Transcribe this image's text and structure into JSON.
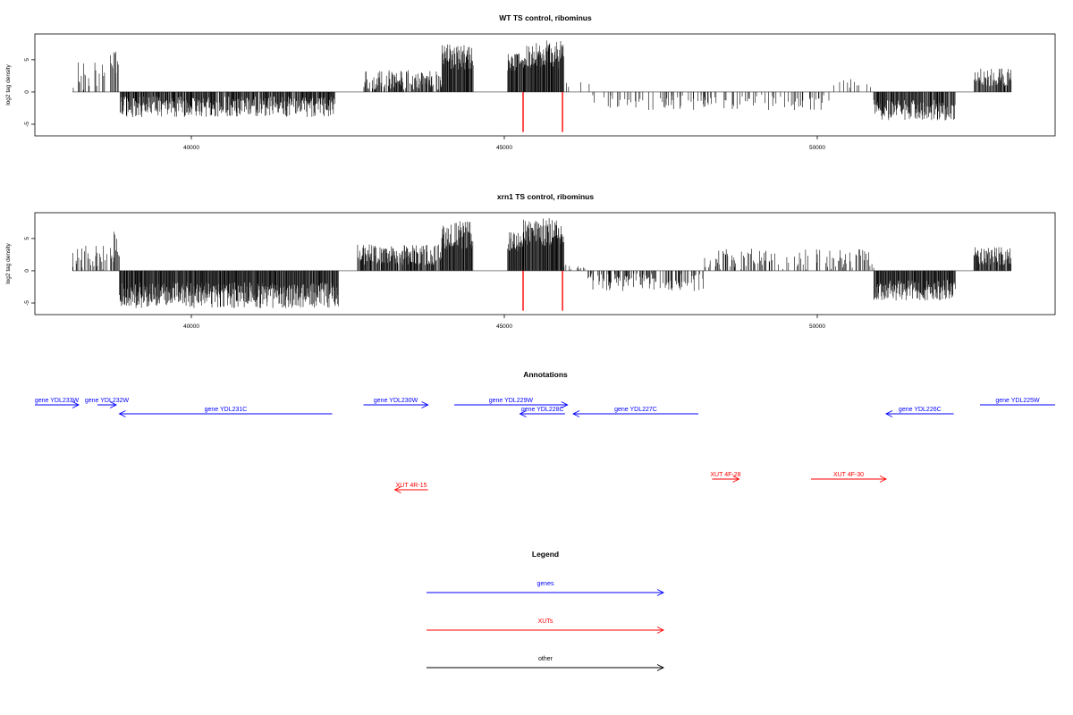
{
  "chart_data": [
    {
      "type": "bar",
      "title": "WT TS control, ribominus",
      "ylabel": "log2 tag density",
      "xlim": [
        37500,
        53800
      ],
      "ylim": [
        -6.8,
        9
      ],
      "x_ticks": [
        40000,
        45000,
        50000
      ],
      "y_ticks": [
        -5,
        0,
        5
      ],
      "y_tick_labels": [
        "-5",
        "0",
        "5"
      ],
      "marker_lines": [
        45300,
        45930
      ],
      "marker_color": "#ff0000",
      "density_color": "#000000",
      "baseline_color": "#808080",
      "segments": [
        {
          "from": 38100,
          "to": 38700,
          "sign": 1,
          "mean": 2.5,
          "var": 2.5
        },
        {
          "from": 38700,
          "to": 38850,
          "sign": 1,
          "mean": 4.5,
          "var": 2.0
        },
        {
          "from": 38850,
          "to": 42300,
          "sign": -1,
          "mean": 2.3,
          "var": 1.6
        },
        {
          "from": 42750,
          "to": 44000,
          "sign": 1,
          "mean": 1.8,
          "var": 1.6
        },
        {
          "from": 44000,
          "to": 44500,
          "sign": 1,
          "mean": 5.5,
          "var": 2.0
        },
        {
          "from": 44500,
          "to": 45050,
          "sign": 0,
          "mean": 0.0,
          "var": 0.0
        },
        {
          "from": 45050,
          "to": 45300,
          "sign": 1,
          "mean": 4.5,
          "var": 1.5
        },
        {
          "from": 45300,
          "to": 45950,
          "sign": 1,
          "mean": 5.8,
          "var": 2.2
        },
        {
          "from": 45950,
          "to": 46400,
          "sign": 1,
          "mean": 0.8,
          "var": 0.8
        },
        {
          "from": 46400,
          "to": 50200,
          "sign": -1,
          "mean": 1.6,
          "var": 1.2
        },
        {
          "from": 50200,
          "to": 50900,
          "sign": 1,
          "mean": 1.0,
          "var": 1.0
        },
        {
          "from": 50900,
          "to": 52200,
          "sign": -1,
          "mean": 2.8,
          "var": 1.6
        },
        {
          "from": 52500,
          "to": 53100,
          "sign": 1,
          "mean": 2.3,
          "var": 1.4
        }
      ],
      "density": {
        "38100": 0.25,
        "38850": 0.9,
        "42750": 0.7,
        "44000": 1.0,
        "45050": 1.0,
        "45300": 1.0,
        "45950": 0.15,
        "46400": 0.2,
        "50200": 0.1,
        "50900": 0.9,
        "52500": 0.8,
        "38700": 0.5
      }
    },
    {
      "type": "bar",
      "title": "xrn1 TS control, ribominus",
      "ylabel": "log2 tag density",
      "xlim": [
        37500,
        53800
      ],
      "ylim": [
        -6.8,
        9
      ],
      "x_ticks": [
        40000,
        45000,
        50000
      ],
      "y_ticks": [
        -5,
        0,
        5
      ],
      "y_tick_labels": [
        "-5",
        "0",
        "5"
      ],
      "marker_lines": [
        45300,
        45930
      ],
      "marker_color": "#ff0000",
      "density_color": "#000000",
      "baseline_color": "#808080",
      "segments": [
        {
          "from": 38100,
          "to": 38700,
          "sign": 1,
          "mean": 2.0,
          "var": 2.0
        },
        {
          "from": 38700,
          "to": 38850,
          "sign": 1,
          "mean": 3.8,
          "var": 2.5
        },
        {
          "from": 38850,
          "to": 42350,
          "sign": -1,
          "mean": 3.8,
          "var": 2.0
        },
        {
          "from": 42650,
          "to": 44000,
          "sign": 1,
          "mean": 2.5,
          "var": 1.6
        },
        {
          "from": 44000,
          "to": 44500,
          "sign": 1,
          "mean": 5.5,
          "var": 2.2
        },
        {
          "from": 44500,
          "to": 45050,
          "sign": 0,
          "mean": 0.0,
          "var": 0.0
        },
        {
          "from": 45050,
          "to": 45300,
          "sign": 1,
          "mean": 4.5,
          "var": 1.5
        },
        {
          "from": 45300,
          "to": 45950,
          "sign": 1,
          "mean": 6.0,
          "var": 2.2
        },
        {
          "from": 45950,
          "to": 46300,
          "sign": 1,
          "mean": 0.5,
          "var": 0.5
        },
        {
          "from": 46300,
          "to": 48200,
          "sign": -1,
          "mean": 1.8,
          "var": 1.4
        },
        {
          "from": 48200,
          "to": 50900,
          "sign": 1,
          "mean": 1.8,
          "var": 1.6
        },
        {
          "from": 50900,
          "to": 52200,
          "sign": -1,
          "mean": 3.0,
          "var": 1.6
        },
        {
          "from": 52500,
          "to": 53100,
          "sign": 1,
          "mean": 2.3,
          "var": 1.4
        }
      ],
      "density": {
        "38100": 0.4,
        "38850": 1.0,
        "42650": 0.9,
        "44000": 1.0,
        "45050": 1.0,
        "45300": 1.0,
        "45950": 0.2,
        "46300": 0.4,
        "48200": 0.35,
        "50900": 1.0,
        "52500": 0.9,
        "38700": 0.6
      }
    }
  ],
  "annotations": {
    "title": "Annotations",
    "xlim": [
      37500,
      53800
    ],
    "genes_color": "#0000ff",
    "xuts_color": "#ff0000",
    "features": [
      {
        "label": "gene YDL233W",
        "from": 37200,
        "to": 38200,
        "dir": "+",
        "row": 0,
        "kind": "gene"
      },
      {
        "label": "gene YDL232W",
        "from": 38500,
        "to": 38800,
        "dir": "+",
        "row": 0,
        "kind": "gene"
      },
      {
        "label": "gene YDL231C",
        "from": 38850,
        "to": 42250,
        "dir": "-",
        "row": 1,
        "kind": "gene"
      },
      {
        "label": "gene YDL230W",
        "from": 42750,
        "to": 43780,
        "dir": "+",
        "row": 0,
        "kind": "gene"
      },
      {
        "label": "gene YDL229W",
        "from": 44200,
        "to": 46010,
        "dir": "+",
        "row": 0,
        "kind": "gene"
      },
      {
        "label": "gene YDL228C",
        "from": 45250,
        "to": 45970,
        "dir": "-",
        "row": 1,
        "kind": "gene"
      },
      {
        "label": "gene YDL227C",
        "from": 46100,
        "to": 48100,
        "dir": "-",
        "row": 1,
        "kind": "gene"
      },
      {
        "label": "gene YDL226C",
        "from": 51100,
        "to": 52180,
        "dir": "-",
        "row": 1,
        "kind": "gene"
      },
      {
        "label": "gene YDL225W",
        "from": 52600,
        "to": 54500,
        "dir": "+",
        "row": 0,
        "kind": "gene"
      },
      {
        "label": "XUT 4R-15",
        "from": 43250,
        "to": 43780,
        "dir": "-",
        "row": 3,
        "kind": "xut"
      },
      {
        "label": "XUT 4F-28",
        "from": 48320,
        "to": 48750,
        "dir": "+",
        "row": 2,
        "kind": "xut"
      },
      {
        "label": "XUT 4F-30",
        "from": 49900,
        "to": 51100,
        "dir": "+",
        "row": 2,
        "kind": "xut"
      }
    ]
  },
  "legend": {
    "title": "Legend",
    "items": [
      {
        "label": "genes",
        "color": "#0000ff"
      },
      {
        "label": "XUTs",
        "color": "#ff0000"
      },
      {
        "label": "other",
        "color": "#000000"
      }
    ]
  }
}
